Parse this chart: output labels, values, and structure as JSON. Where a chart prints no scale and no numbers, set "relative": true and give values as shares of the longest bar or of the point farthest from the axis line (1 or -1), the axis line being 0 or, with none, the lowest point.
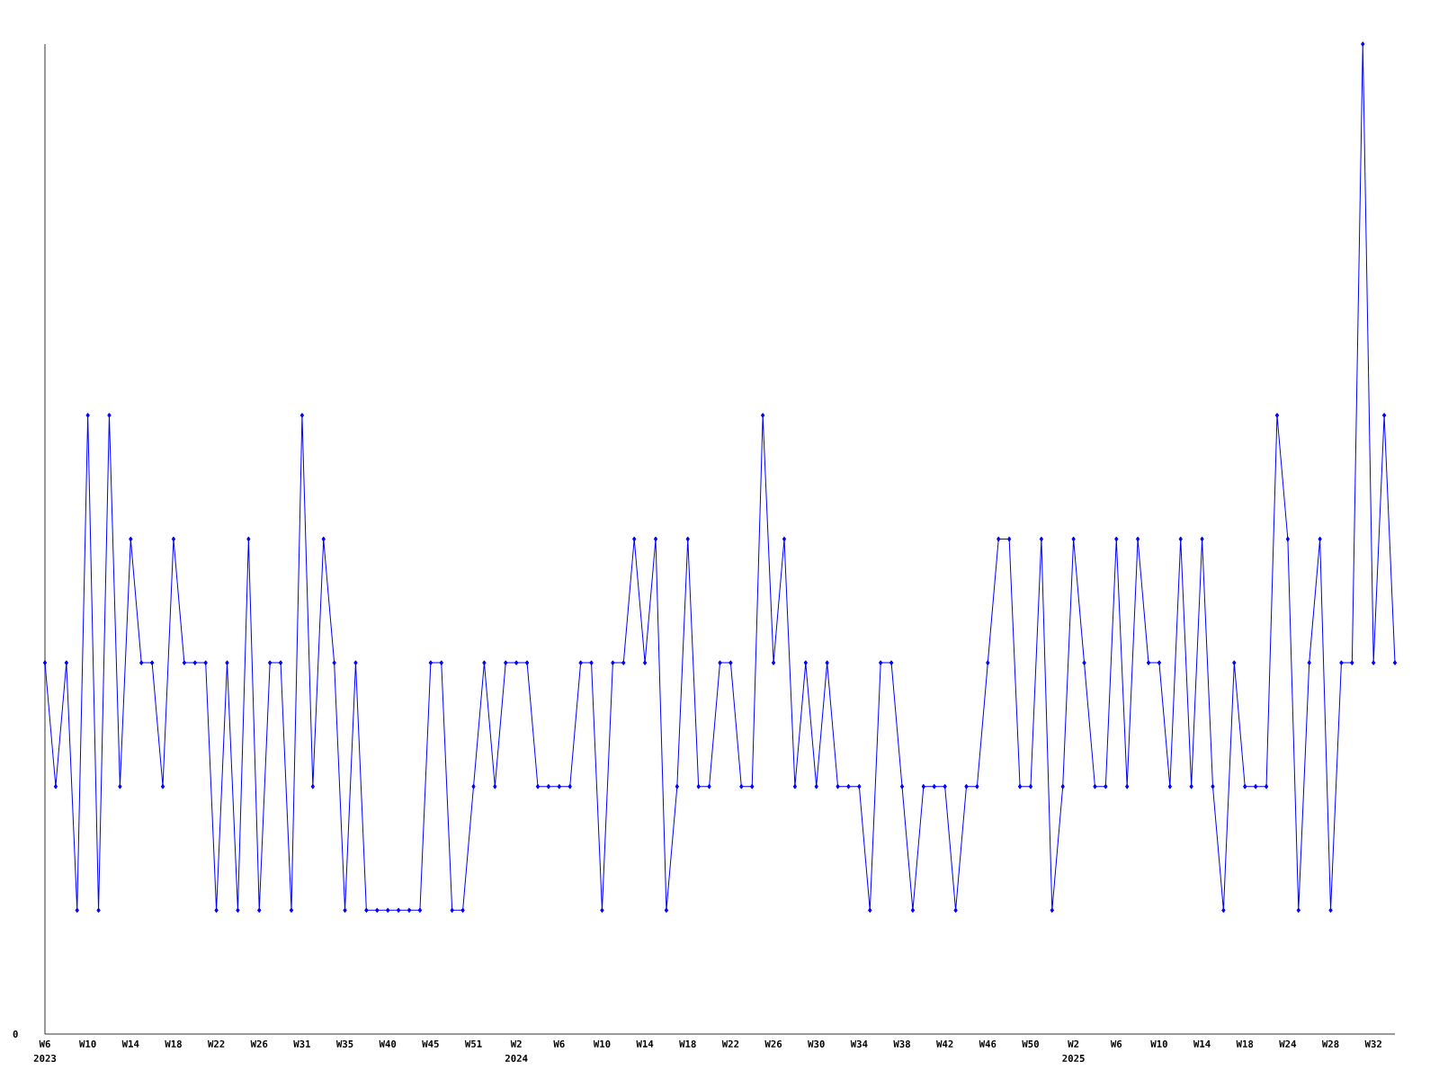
{
  "chart_data": {
    "type": "line",
    "relative": true,
    "marker": "diamond",
    "line_style": "solid",
    "categories": [
      "W6",
      null,
      null,
      null,
      "W10",
      null,
      null,
      null,
      "W14",
      null,
      null,
      null,
      "W18",
      null,
      null,
      null,
      "W22",
      null,
      null,
      null,
      "W26",
      null,
      null,
      null,
      "W31",
      null,
      null,
      null,
      "W35",
      null,
      null,
      null,
      "W40",
      null,
      null,
      null,
      "W45",
      null,
      null,
      null,
      "W51",
      null,
      null,
      null,
      "W2",
      null,
      null,
      null,
      "W6",
      null,
      null,
      null,
      "W10",
      null,
      null,
      null,
      "W14",
      null,
      null,
      null,
      "W18",
      null,
      null,
      null,
      "W22",
      null,
      null,
      null,
      "W26",
      null,
      null,
      null,
      "W30",
      null,
      null,
      null,
      "W34",
      null,
      null,
      null,
      "W38",
      null,
      null,
      null,
      "W42",
      null,
      null,
      null,
      "W46",
      null,
      null,
      null,
      "W50",
      null,
      null,
      null,
      "W2",
      null,
      null,
      null,
      "W6",
      null,
      null,
      null,
      "W10",
      null,
      null,
      null,
      "W14",
      null,
      null,
      null,
      "W18",
      null,
      null,
      null,
      "W24",
      null,
      null,
      null,
      "W28",
      null,
      null,
      null,
      "W32",
      null,
      null
    ],
    "series": [
      {
        "color": "#0000ff",
        "values": [
          0.375,
          0.25,
          0.375,
          0.125,
          0.625,
          0.125,
          0.625,
          0.25,
          0.5,
          0.375,
          0.375,
          0.25,
          0.5,
          0.375,
          0.375,
          0.375,
          0.125,
          0.375,
          0.125,
          0.5,
          0.125,
          0.375,
          0.375,
          0.125,
          0.625,
          0.25,
          0.5,
          0.375,
          0.125,
          0.375,
          0.125,
          0.125,
          0.125,
          0.125,
          0.125,
          0.125,
          0.375,
          0.375,
          0.125,
          0.125,
          0.25,
          0.375,
          0.25,
          0.375,
          0.375,
          0.375,
          0.25,
          0.25,
          0.25,
          0.25,
          0.375,
          0.375,
          0.125,
          0.375,
          0.375,
          0.5,
          0.375,
          0.5,
          0.125,
          0.25,
          0.5,
          0.25,
          0.25,
          0.375,
          0.375,
          0.25,
          0.25,
          0.625,
          0.375,
          0.5,
          0.25,
          0.375,
          0.25,
          0.375,
          0.25,
          0.25,
          0.25,
          0.125,
          0.375,
          0.375,
          0.25,
          0.125,
          0.25,
          0.25,
          0.25,
          0.125,
          0.25,
          0.25,
          0.375,
          0.5,
          0.5,
          0.25,
          0.25,
          0.5,
          0.125,
          0.25,
          0.5,
          0.375,
          0.25,
          0.25,
          0.5,
          0.25,
          0.5,
          0.375,
          0.375,
          0.25,
          0.5,
          0.25,
          0.5,
          0.25,
          0.125,
          0.375,
          0.25,
          0.25,
          0.25,
          0.625,
          0.5,
          0.125,
          0.375,
          0.5,
          0.125,
          0.375,
          0.375,
          1,
          0.375,
          0.625,
          0.375
        ]
      }
    ],
    "annotations": [
      "0",
      "2023",
      "2024",
      "2025"
    ]
  }
}
